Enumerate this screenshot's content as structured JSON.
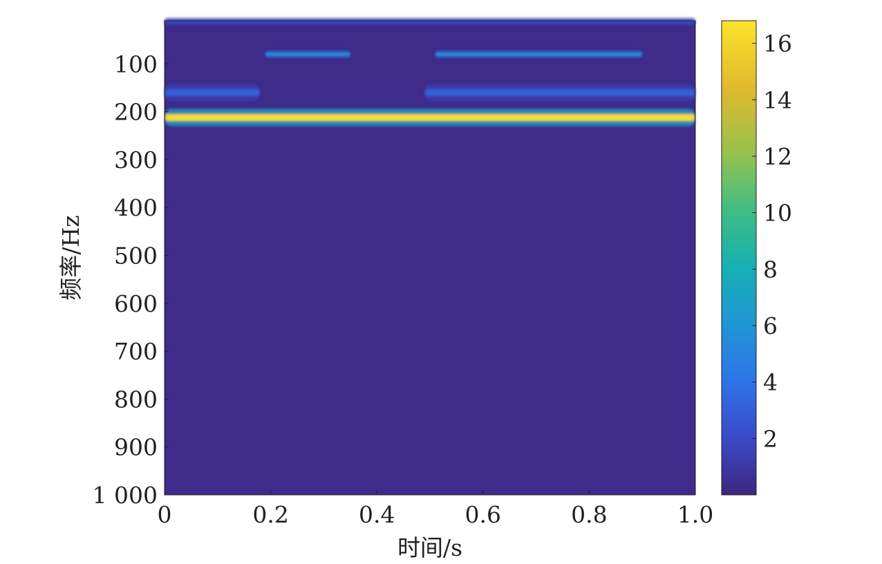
{
  "chart_data": {
    "type": "heatmap",
    "title": "",
    "xlabel": "时间/s",
    "ylabel": "频率/Hz",
    "xlim": [
      0,
      1.0
    ],
    "ylim": [
      1000,
      10
    ],
    "x_ticks": [
      {
        "value": 0,
        "label": "0"
      },
      {
        "value": 0.2,
        "label": "0.2"
      },
      {
        "value": 0.4,
        "label": "0.4"
      },
      {
        "value": 0.6,
        "label": "0.6"
      },
      {
        "value": 0.8,
        "label": "0.8"
      },
      {
        "value": 1.0,
        "label": "1.0"
      }
    ],
    "y_ticks": [
      {
        "value": 100,
        "label": "100"
      },
      {
        "value": 200,
        "label": "200"
      },
      {
        "value": 300,
        "label": "300"
      },
      {
        "value": 400,
        "label": "400"
      },
      {
        "value": 500,
        "label": "500"
      },
      {
        "value": 600,
        "label": "600"
      },
      {
        "value": 700,
        "label": "700"
      },
      {
        "value": 800,
        "label": "800"
      },
      {
        "value": 900,
        "label": "900"
      },
      {
        "value": 1000,
        "label": "1 000"
      }
    ],
    "colorbar": {
      "range": [
        0,
        16.8
      ],
      "ticks": [
        {
          "value": 2,
          "label": "2"
        },
        {
          "value": 4,
          "label": "4"
        },
        {
          "value": 6,
          "label": "6"
        },
        {
          "value": 8,
          "label": "8"
        },
        {
          "value": 10,
          "label": "10"
        },
        {
          "value": 12,
          "label": "12"
        },
        {
          "value": 14,
          "label": "14"
        },
        {
          "value": 16,
          "label": "16"
        }
      ],
      "colormap": [
        "#3e2680",
        "#3b49c9",
        "#2e74e8",
        "#2096d4",
        "#16b0b2",
        "#3fbd84",
        "#96c24c",
        "#e2b92e",
        "#fbe42a"
      ]
    },
    "background_value": 0.3,
    "bands": [
      {
        "freq": 12,
        "t_start": 0,
        "t_end": 1.0,
        "value": 2.2,
        "width_hz": 6
      },
      {
        "freq": 80,
        "t_start": 0.19,
        "t_end": 0.35,
        "value": 6.5,
        "width_hz": 6
      },
      {
        "freq": 80,
        "t_start": 0.51,
        "t_end": 0.9,
        "value": 6.5,
        "width_hz": 6
      },
      {
        "freq": 160,
        "t_start": 0,
        "t_end": 0.18,
        "value": 3.2,
        "width_hz": 14
      },
      {
        "freq": 160,
        "t_start": 0.49,
        "t_end": 1.0,
        "value": 3.2,
        "width_hz": 14
      },
      {
        "freq": 212,
        "t_start": 0,
        "t_end": 1.0,
        "value": 16.5,
        "width_hz": 14
      }
    ]
  }
}
